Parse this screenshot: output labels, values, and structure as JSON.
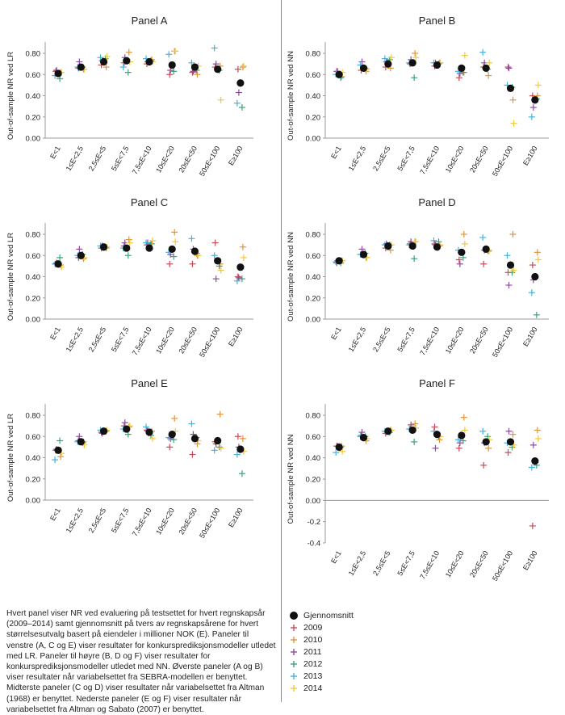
{
  "chart_data": [
    {
      "panel": "A",
      "title": "Panel A",
      "type": "scatter",
      "ylabel": "Out-of-sample NR ved LR",
      "ylim": [
        0,
        0.9
      ],
      "yticks": [
        "0.00",
        "0.20",
        "0.40",
        "0.60",
        "0.80"
      ],
      "categories": [
        "E<1",
        "1≤E<2,5",
        "2,5≤E<5",
        "5≤E<7,5",
        "7,5≤E<10",
        "10≤E<20",
        "20≤E<50",
        "50≤E<100",
        "E≥100"
      ],
      "series": [
        {
          "name": "Gjennomsnitt",
          "values": [
            0.61,
            0.67,
            0.72,
            0.73,
            0.72,
            0.69,
            0.67,
            0.65,
            0.52
          ]
        },
        {
          "name": "2009",
          "values": [
            0.63,
            0.66,
            0.69,
            0.71,
            0.7,
            0.6,
            0.62,
            0.67,
            0.65
          ]
        },
        {
          "name": "2010",
          "values": [
            0.62,
            0.65,
            0.67,
            0.81,
            0.74,
            0.82,
            0.6,
            0.68,
            0.67
          ]
        },
        {
          "name": "2011",
          "values": [
            0.64,
            0.72,
            0.73,
            0.76,
            0.72,
            0.64,
            0.63,
            0.7,
            0.43
          ]
        },
        {
          "name": "2012",
          "values": [
            0.56,
            0.67,
            0.75,
            0.62,
            0.73,
            0.63,
            0.64,
            0.64,
            0.29
          ]
        },
        {
          "name": "2013",
          "values": [
            0.59,
            0.67,
            0.76,
            0.67,
            0.75,
            0.79,
            0.71,
            0.85,
            0.33
          ]
        },
        {
          "name": "2014",
          "values": [
            0.62,
            0.65,
            0.77,
            0.72,
            0.72,
            0.82,
            0.68,
            0.36,
            0.68
          ]
        }
      ]
    },
    {
      "panel": "B",
      "title": "Panel B",
      "type": "scatter",
      "ylabel": "Out-of-sample NR ved NN",
      "ylim": [
        0,
        0.9
      ],
      "yticks": [
        "0.00",
        "0.20",
        "0.40",
        "0.60",
        "0.80"
      ],
      "categories": [
        "E<1",
        "1≤E<2,5",
        "2,5≤E<5",
        "5≤E<7,5",
        "7,5≤E<10",
        "10≤E<20",
        "20≤E<50",
        "50≤E<100",
        "E≥100"
      ],
      "series": [
        {
          "name": "Gjennomsnitt",
          "values": [
            0.6,
            0.66,
            0.7,
            0.71,
            0.69,
            0.66,
            0.66,
            0.47,
            0.36
          ]
        },
        {
          "name": "2009",
          "values": [
            0.63,
            0.64,
            0.67,
            0.7,
            0.68,
            0.57,
            0.67,
            0.67,
            0.4
          ]
        },
        {
          "name": "2010",
          "values": [
            0.58,
            0.63,
            0.66,
            0.8,
            0.71,
            0.62,
            0.59,
            0.36,
            0.4
          ]
        },
        {
          "name": "2011",
          "values": [
            0.63,
            0.72,
            0.72,
            0.74,
            0.71,
            0.61,
            0.71,
            0.66,
            0.29
          ]
        },
        {
          "name": "2012",
          "values": [
            0.57,
            0.66,
            0.74,
            0.57,
            0.7,
            0.62,
            0.65,
            0.48,
            0.37
          ]
        },
        {
          "name": "2013",
          "values": [
            0.6,
            0.69,
            0.75,
            0.71,
            0.71,
            0.63,
            0.81,
            0.5,
            0.2
          ]
        },
        {
          "name": "2014",
          "values": [
            0.62,
            0.65,
            0.76,
            0.76,
            0.71,
            0.78,
            0.71,
            0.14,
            0.5
          ]
        }
      ]
    },
    {
      "panel": "C",
      "title": "Panel C",
      "type": "scatter",
      "ylabel": "Out-of-sample NR ved LR",
      "ylim": [
        0,
        0.9
      ],
      "yticks": [
        "0.00",
        "0.20",
        "0.40",
        "0.60",
        "0.80"
      ],
      "categories": [
        "E<1",
        "1≤E<2,5",
        "2,5≤E<5",
        "5≤E<7,5",
        "7,5≤E<10",
        "10≤E<20",
        "20≤E<50",
        "50≤E<100",
        "E≥100"
      ],
      "series": [
        {
          "name": "Gjennomsnitt",
          "values": [
            0.52,
            0.6,
            0.68,
            0.67,
            0.67,
            0.66,
            0.64,
            0.55,
            0.49
          ]
        },
        {
          "name": "2009",
          "values": [
            0.52,
            0.58,
            0.67,
            0.69,
            0.7,
            0.52,
            0.52,
            0.72,
            0.4
          ]
        },
        {
          "name": "2010",
          "values": [
            0.51,
            0.57,
            0.67,
            0.75,
            0.71,
            0.82,
            0.6,
            0.52,
            0.68
          ]
        },
        {
          "name": "2011",
          "values": [
            0.53,
            0.66,
            0.69,
            0.72,
            0.72,
            0.61,
            0.66,
            0.38,
            0.39
          ]
        },
        {
          "name": "2012",
          "values": [
            0.58,
            0.61,
            0.68,
            0.6,
            0.71,
            0.59,
            0.62,
            0.5,
            0.38
          ]
        },
        {
          "name": "2013",
          "values": [
            0.52,
            0.6,
            0.69,
            0.67,
            0.72,
            0.63,
            0.76,
            0.6,
            0.36
          ]
        },
        {
          "name": "2014",
          "values": [
            0.49,
            0.58,
            0.68,
            0.72,
            0.74,
            0.73,
            0.6,
            0.46,
            0.58
          ]
        }
      ]
    },
    {
      "panel": "D",
      "title": "Panel D",
      "type": "scatter",
      "ylabel": "Out-of-sample NR ved NN",
      "ylim": [
        0,
        0.9
      ],
      "yticks": [
        "0.00",
        "0.20",
        "0.40",
        "0.60",
        "0.80"
      ],
      "categories": [
        "E<1",
        "1≤E<2,5",
        "2,5≤E<5",
        "5≤E<7,5",
        "7,5≤E<10",
        "10≤E<20",
        "20≤E<50",
        "50≤E<100",
        "E≥100"
      ],
      "series": [
        {
          "name": "Gjennomsnitt",
          "values": [
            0.55,
            0.61,
            0.69,
            0.69,
            0.68,
            0.63,
            0.66,
            0.51,
            0.4
          ]
        },
        {
          "name": "2009",
          "values": [
            0.53,
            0.61,
            0.67,
            0.71,
            0.71,
            0.56,
            0.52,
            0.44,
            0.51
          ]
        },
        {
          "name": "2010",
          "values": [
            0.55,
            0.58,
            0.65,
            0.73,
            0.69,
            0.8,
            0.64,
            0.8,
            0.63
          ]
        },
        {
          "name": "2011",
          "values": [
            0.55,
            0.66,
            0.71,
            0.73,
            0.7,
            0.52,
            0.65,
            0.32,
            0.37
          ]
        },
        {
          "name": "2012",
          "values": [
            0.53,
            0.62,
            0.7,
            0.57,
            0.73,
            0.58,
            0.65,
            0.44,
            0.04
          ]
        },
        {
          "name": "2013",
          "values": [
            0.54,
            0.61,
            0.7,
            0.7,
            0.74,
            0.65,
            0.77,
            0.6,
            0.25
          ]
        },
        {
          "name": "2014",
          "values": [
            0.55,
            0.58,
            0.7,
            0.73,
            0.7,
            0.71,
            0.65,
            0.46,
            0.56
          ]
        }
      ]
    },
    {
      "panel": "E",
      "title": "Panel E",
      "type": "scatter",
      "ylabel": "Out-of-sample NR ved LR",
      "ylim": [
        0,
        0.9
      ],
      "yticks": [
        "0.00",
        "0.20",
        "0.40",
        "0.60",
        "0.80"
      ],
      "categories": [
        "E<1",
        "1≤E<2,5",
        "2,5≤E<5",
        "5≤E<7,5",
        "7,5≤E<10",
        "10≤E<20",
        "20≤E<50",
        "50≤E<100",
        "E≥100"
      ],
      "series": [
        {
          "name": "Gjennomsnitt",
          "values": [
            0.47,
            0.55,
            0.65,
            0.67,
            0.64,
            0.62,
            0.58,
            0.56,
            0.48
          ]
        },
        {
          "name": "2009",
          "values": [
            0.47,
            0.56,
            0.64,
            0.7,
            0.66,
            0.5,
            0.43,
            0.55,
            0.6
          ]
        },
        {
          "name": "2010",
          "values": [
            0.41,
            0.55,
            0.65,
            0.69,
            0.65,
            0.77,
            0.53,
            0.81,
            0.58
          ]
        },
        {
          "name": "2011",
          "values": [
            0.48,
            0.6,
            0.63,
            0.73,
            0.65,
            0.58,
            0.62,
            0.53,
            0.5
          ]
        },
        {
          "name": "2012",
          "values": [
            0.56,
            0.54,
            0.65,
            0.62,
            0.61,
            0.57,
            0.59,
            0.5,
            0.25
          ]
        },
        {
          "name": "2013",
          "values": [
            0.38,
            0.55,
            0.66,
            0.67,
            0.69,
            0.59,
            0.72,
            0.47,
            0.43
          ]
        },
        {
          "name": "2014",
          "values": [
            0.44,
            0.52,
            0.66,
            0.7,
            0.58,
            0.65,
            0.56,
            0.49,
            0.46
          ]
        }
      ]
    },
    {
      "panel": "F",
      "title": "Panel F",
      "type": "scatter",
      "ylabel": "Out-of-sample NR ved NN",
      "ylim": [
        -0.45,
        0.9
      ],
      "yticks": [
        "-0.4",
        "-0.2",
        "0.00",
        "0.20",
        "0.40",
        "0.60",
        "0.80"
      ],
      "categories": [
        "E<1",
        "1≤E<2,5",
        "2,5≤E<5",
        "5≤E<7,5",
        "7,5≤E<10",
        "10≤E<20",
        "20≤E<50",
        "50≤E<100",
        "E≥100"
      ],
      "series": [
        {
          "name": "Gjennomsnitt",
          "values": [
            0.5,
            0.59,
            0.65,
            0.66,
            0.62,
            0.61,
            0.55,
            0.55,
            0.37
          ]
        },
        {
          "name": "2009",
          "values": [
            0.51,
            0.61,
            0.63,
            0.67,
            0.69,
            0.49,
            0.33,
            0.45,
            -0.24
          ]
        },
        {
          "name": "2010",
          "values": [
            0.51,
            0.56,
            0.66,
            0.72,
            0.57,
            0.78,
            0.49,
            0.62,
            0.66
          ]
        },
        {
          "name": "2011",
          "values": [
            0.51,
            0.64,
            0.65,
            0.71,
            0.49,
            0.54,
            0.54,
            0.65,
            0.52
          ]
        },
        {
          "name": "2012",
          "values": [
            0.5,
            0.6,
            0.64,
            0.55,
            0.6,
            0.56,
            0.6,
            0.5,
            0.33
          ]
        },
        {
          "name": "2013",
          "values": [
            0.45,
            0.6,
            0.65,
            0.67,
            0.65,
            0.57,
            0.65,
            0.54,
            0.31
          ]
        },
        {
          "name": "2014",
          "values": [
            0.46,
            0.58,
            0.66,
            0.68,
            0.6,
            0.66,
            0.57,
            0.52,
            0.58
          ]
        }
      ]
    }
  ],
  "colors": {
    "Gjennomsnitt": "#111111",
    "2009": "#c94a55",
    "2010": "#e0943a",
    "2011": "#8e4a9e",
    "2012": "#3aa37a",
    "2013": "#44b2dd",
    "2014": "#f2c93b"
  },
  "legend": [
    {
      "label": "Gjennomsnitt",
      "key": "Gjennomsnitt",
      "marker": "dot"
    },
    {
      "label": "2009",
      "key": "2009",
      "marker": "plus"
    },
    {
      "label": "2010",
      "key": "2010",
      "marker": "plus"
    },
    {
      "label": "2011",
      "key": "2011",
      "marker": "plus"
    },
    {
      "label": "2012",
      "key": "2012",
      "marker": "plus"
    },
    {
      "label": "2013",
      "key": "2013",
      "marker": "plus"
    },
    {
      "label": "2014",
      "key": "2014",
      "marker": "plus"
    }
  ],
  "caption": "Hvert panel viser NR ved evaluering på testsettet for hvert regnskapsår (2009–2014) samt gjennomsnitt på tvers av regnskapsårene for hvert størrelsesutvalg basert på eiendeler i millioner NOK (E). Paneler til venstre (A, C og E) viser resultater for konkursprediksjonsmodeller utledet med LR. Paneler til høyre (B, D og F) viser resultater for konkursprediksjonsmodeller utledet med NN. Øverste paneler (A og B) viser resultater når variabelsettet fra SEBRA-modellen er benyttet. Midterste paneler (C og D) viser resultater når variabelsettet fra Altman (1968) er benyttet. Nederste paneler (E og F) viser resultater når variabelsettet fra Altman og Sabato (2007) er benyttet."
}
